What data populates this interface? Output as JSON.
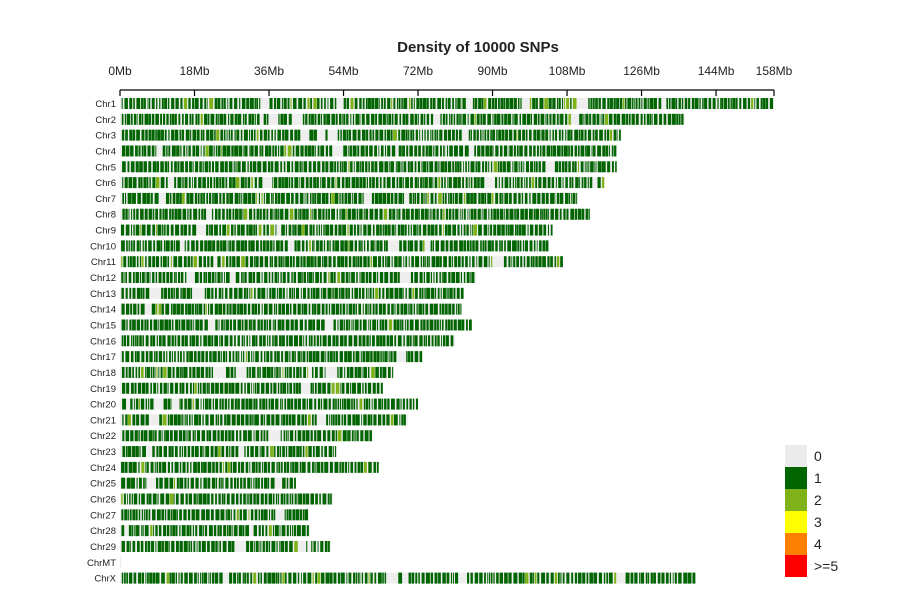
{
  "chart_data": {
    "type": "heatmap",
    "title": "Density of 10000 SNPs",
    "xlabel": "",
    "ylabel": "",
    "x_unit": "Mb",
    "xlim": [
      0,
      158
    ],
    "x_ticks": [
      {
        "value": 0,
        "label": "0Mb"
      },
      {
        "value": 18,
        "label": "18Mb"
      },
      {
        "value": 36,
        "label": "36Mb"
      },
      {
        "value": 54,
        "label": "54Mb"
      },
      {
        "value": 72,
        "label": "72Mb"
      },
      {
        "value": 90,
        "label": "90Mb"
      },
      {
        "value": 108,
        "label": "108Mb"
      },
      {
        "value": 126,
        "label": "126Mb"
      },
      {
        "value": 144,
        "label": "144Mb"
      },
      {
        "value": 158,
        "label": "158Mb"
      }
    ],
    "chromosomes": [
      {
        "name": "Chr1",
        "length_mb": 158
      },
      {
        "name": "Chr2",
        "length_mb": 136.5
      },
      {
        "name": "Chr3",
        "length_mb": 121
      },
      {
        "name": "Chr4",
        "length_mb": 120
      },
      {
        "name": "Chr5",
        "length_mb": 120
      },
      {
        "name": "Chr6",
        "length_mb": 117
      },
      {
        "name": "Chr7",
        "length_mb": 110.5
      },
      {
        "name": "Chr8",
        "length_mb": 113.5
      },
      {
        "name": "Chr9",
        "length_mb": 104.5
      },
      {
        "name": "Chr10",
        "length_mb": 103.5
      },
      {
        "name": "Chr11",
        "length_mb": 107
      },
      {
        "name": "Chr12",
        "length_mb": 86
      },
      {
        "name": "Chr13",
        "length_mb": 83
      },
      {
        "name": "Chr14",
        "length_mb": 82.5
      },
      {
        "name": "Chr15",
        "length_mb": 85
      },
      {
        "name": "Chr16",
        "length_mb": 81
      },
      {
        "name": "Chr17",
        "length_mb": 73
      },
      {
        "name": "Chr18",
        "length_mb": 66
      },
      {
        "name": "Chr19",
        "length_mb": 63.5
      },
      {
        "name": "Chr20",
        "length_mb": 72
      },
      {
        "name": "Chr21",
        "length_mb": 69.5
      },
      {
        "name": "Chr22",
        "length_mb": 61
      },
      {
        "name": "Chr23",
        "length_mb": 52.5
      },
      {
        "name": "Chr24",
        "length_mb": 62.5
      },
      {
        "name": "Chr25",
        "length_mb": 42.5
      },
      {
        "name": "Chr26",
        "length_mb": 51.5
      },
      {
        "name": "Chr27",
        "length_mb": 45.5
      },
      {
        "name": "Chr28",
        "length_mb": 46
      },
      {
        "name": "Chr29",
        "length_mb": 51
      },
      {
        "name": "ChrMT",
        "length_mb": 0.3
      },
      {
        "name": "ChrX",
        "length_mb": 139
      }
    ],
    "legend": {
      "placement": "bottom-right",
      "items": [
        {
          "label": "0",
          "color": "#ebebeb"
        },
        {
          "label": "1",
          "color": "#006400"
        },
        {
          "label": "2",
          "color": "#7fb218"
        },
        {
          "label": "3",
          "color": "#ffff00"
        },
        {
          "label": "4",
          "color": "#ff8000"
        },
        {
          "label": ">=5",
          "color": "#ff0000"
        }
      ]
    },
    "bar_background_color": "#eeeeee",
    "grid": false
  }
}
